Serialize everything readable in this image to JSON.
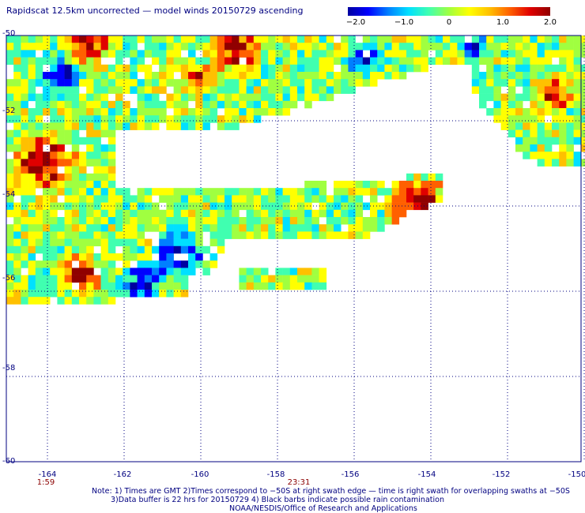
{
  "title": "Rapidscat 12.5km uncorrected — model winds 20150729 ascending",
  "colorbar": {
    "ticks": [
      "−2.0",
      "−1.0",
      "0",
      "1.0",
      "2.0"
    ],
    "range": [
      -2.0,
      2.0
    ],
    "colors": [
      "#0000a0",
      "#0000ff",
      "#0080ff",
      "#00e0ff",
      "#40ffb0",
      "#a0ff40",
      "#ffff00",
      "#ffc000",
      "#ff6000",
      "#e00000",
      "#900000"
    ]
  },
  "axes": {
    "x_ticks": [
      "-164",
      "-162",
      "-160",
      "-158",
      "-156",
      "-154",
      "-152",
      "-150"
    ],
    "y_ticks": [
      "-50",
      "-52",
      "-54",
      "-56",
      "-58",
      "-60"
    ],
    "grid_color": "#000080"
  },
  "time_labels": [
    {
      "text": "1:59",
      "lon": -164
    },
    {
      "text": "23:31",
      "lon": -157.4
    }
  ],
  "notes": [
    "Note: 1) Times are GMT 2)Times correspond to −50S at right swath edge — time is right swath for overlapping swaths at −50S",
    "3)Data buffer is 22 hrs for 20150729 4) Black barbs indicate possible rain contamination",
    "NOAA/NESDIS/Office of Research and Applications"
  ]
}
